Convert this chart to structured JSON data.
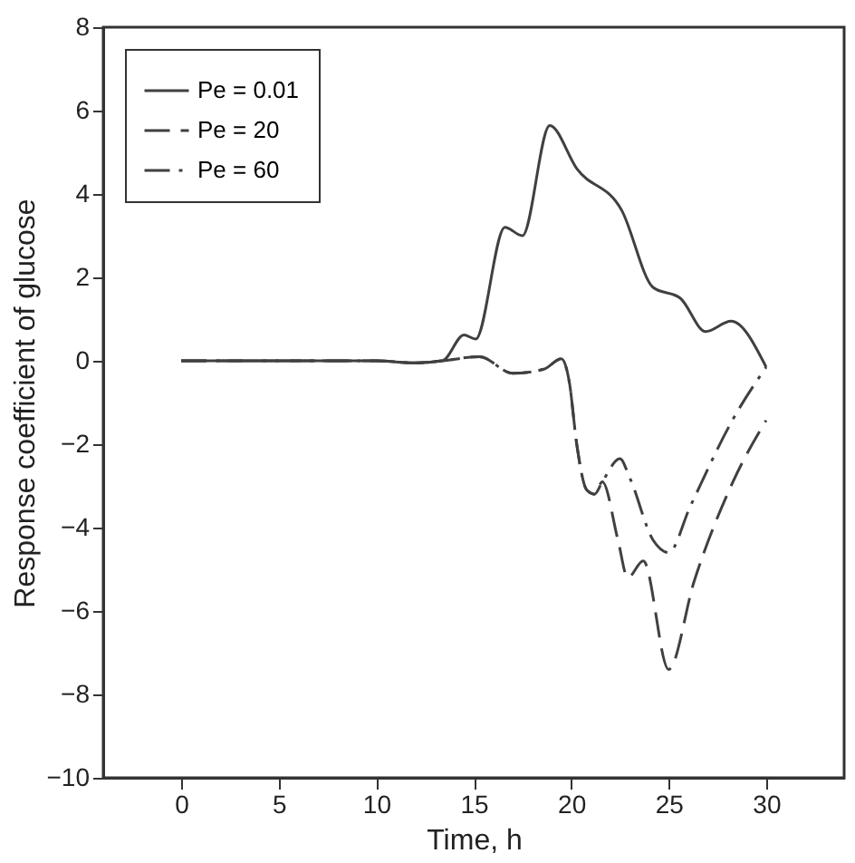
{
  "chart_data": {
    "type": "line",
    "xlabel": "Time, h",
    "ylabel": "Response coefficient of glucose",
    "xlim": [
      -4,
      34
    ],
    "xticks": [
      0,
      5,
      10,
      15,
      20,
      25,
      30
    ],
    "ylim": [
      -10,
      8
    ],
    "yticks": [
      -10,
      -8,
      -6,
      -4,
      -2,
      0,
      2,
      4,
      6,
      8
    ],
    "grid": false,
    "legend": "top left",
    "marker": "none",
    "series": [
      {
        "name": "Pe = 0.01",
        "color": "#404040",
        "line_style": "solid",
        "x": [
          0,
          5,
          10,
          12,
          13.4,
          14.5,
          15.1,
          16.6,
          17.5,
          18.9,
          20.3,
          22.6,
          24.2,
          25.6,
          26.9,
          28.2,
          30
        ],
        "values": [
          0,
          0,
          0,
          -0.05,
          0,
          0.62,
          0.52,
          3.2,
          3.0,
          5.64,
          4.6,
          3.6,
          1.76,
          1.5,
          0.7,
          0.95,
          -0.15
        ]
      },
      {
        "name": "Pe = 20",
        "color": "#404040",
        "line_style": "dashed",
        "x": [
          0,
          5,
          10,
          12,
          13.4,
          15.3,
          17,
          18.6,
          19.5,
          19.9,
          20.3,
          20.8,
          21.2,
          21.6,
          22.4,
          22.9,
          23.7,
          25,
          26.3,
          28.3,
          30
        ],
        "values": [
          0,
          0,
          0,
          -0.05,
          0,
          0.1,
          -0.3,
          -0.2,
          0.05,
          -0.5,
          -2.05,
          -3.1,
          -3.2,
          -2.9,
          -4.3,
          -5.2,
          -4.8,
          -7.4,
          -5.3,
          -2.9,
          -1.43
        ]
      },
      {
        "name": "Pe = 60",
        "color": "#404040",
        "line_style": "dashdot",
        "x": [
          0,
          5,
          10,
          12,
          13.4,
          15.3,
          17,
          18.6,
          19.5,
          19.9,
          20.3,
          20.8,
          21.2,
          21.6,
          22.5,
          23.0,
          24.2,
          25,
          26.1,
          28.3,
          30
        ],
        "values": [
          0,
          0,
          0,
          -0.05,
          0,
          0.1,
          -0.3,
          -0.2,
          0.05,
          -0.5,
          -2.05,
          -3.1,
          -3.2,
          -2.9,
          -2.35,
          -2.8,
          -4.3,
          -4.6,
          -3.5,
          -1.4,
          -0.15
        ]
      }
    ]
  }
}
